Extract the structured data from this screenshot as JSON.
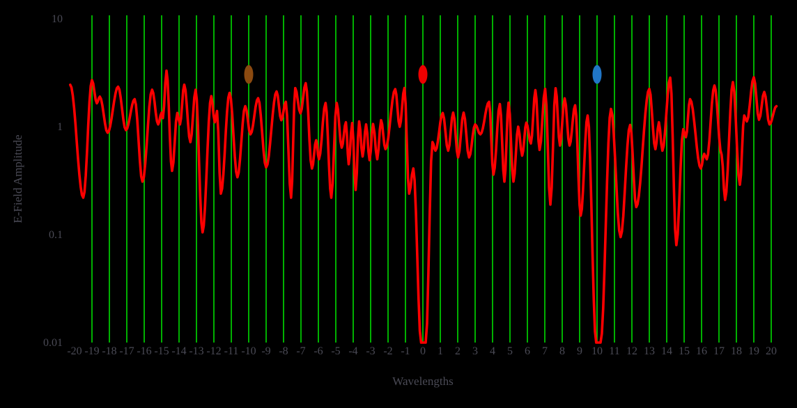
{
  "colors": {
    "background": "#000000",
    "curve": "#ff0000",
    "grid": "#00dd00",
    "text": "#4a4a55"
  },
  "chart_data": {
    "type": "line",
    "title": "",
    "xlabel": "Wavelengths",
    "ylabel": "E-Field Amplitude",
    "yscale": "log",
    "xlim": [
      -20.4,
      20.4
    ],
    "ylim": [
      0.01,
      10
    ],
    "x_ticks": [
      -20,
      -19,
      -18,
      -17,
      -16,
      -15,
      -14,
      -13,
      -12,
      -11,
      -10,
      -9,
      -8,
      -7,
      -6,
      -5,
      -4,
      -3,
      -2,
      -1,
      0,
      1,
      2,
      3,
      4,
      5,
      6,
      7,
      8,
      9,
      10,
      11,
      12,
      13,
      14,
      15,
      16,
      17,
      18,
      19,
      20
    ],
    "y_ticks": [
      {
        "value": 10,
        "label": "10"
      },
      {
        "value": 1,
        "label": "1"
      },
      {
        "value": 0.1,
        "label": "0.1"
      },
      {
        "value": 0.01,
        "label": "0.01"
      }
    ],
    "grid": {
      "vertical": true,
      "from": -19,
      "to": 20,
      "step": 1
    },
    "legend": "none",
    "series": [
      {
        "name": "e-field-amplitude",
        "color": "#ff0000",
        "interpolation": "cosine-log",
        "extrema": [
          [
            -20.25,
            2.45
          ],
          [
            -19.5,
            0.22
          ],
          [
            -19.0,
            2.7
          ],
          [
            -18.72,
            1.65
          ],
          [
            -18.55,
            1.9
          ],
          [
            -18.1,
            0.88
          ],
          [
            -17.5,
            2.35
          ],
          [
            -17.05,
            0.93
          ],
          [
            -16.55,
            1.8
          ],
          [
            -16.1,
            0.31
          ],
          [
            -15.55,
            2.2
          ],
          [
            -15.2,
            1.05
          ],
          [
            -15.0,
            1.35
          ],
          [
            -14.93,
            1.2
          ],
          [
            -14.72,
            3.3
          ],
          [
            -14.4,
            0.39
          ],
          [
            -14.1,
            1.34
          ],
          [
            -13.95,
            1.05
          ],
          [
            -13.7,
            2.45
          ],
          [
            -13.35,
            0.72
          ],
          [
            -13.05,
            2.2
          ],
          [
            -12.65,
            0.105
          ],
          [
            -12.15,
            1.92
          ],
          [
            -11.95,
            1.1
          ],
          [
            -11.82,
            1.4
          ],
          [
            -11.6,
            0.24
          ],
          [
            -11.1,
            2.06
          ],
          [
            -10.65,
            0.34
          ],
          [
            -10.2,
            1.55
          ],
          [
            -9.9,
            0.85
          ],
          [
            -9.46,
            1.84
          ],
          [
            -9.0,
            0.42
          ],
          [
            -8.4,
            2.12
          ],
          [
            -8.13,
            1.15
          ],
          [
            -7.87,
            1.7
          ],
          [
            -7.57,
            0.22
          ],
          [
            -7.33,
            2.28
          ],
          [
            -7.03,
            1.33
          ],
          [
            -6.73,
            2.53
          ],
          [
            -6.37,
            0.41
          ],
          [
            -6.13,
            0.75
          ],
          [
            -5.97,
            0.5
          ],
          [
            -5.59,
            1.66
          ],
          [
            -5.26,
            0.22
          ],
          [
            -4.95,
            1.66
          ],
          [
            -4.66,
            0.64
          ],
          [
            -4.42,
            1.1
          ],
          [
            -4.26,
            0.45
          ],
          [
            -4.06,
            1.08
          ],
          [
            -3.86,
            0.26
          ],
          [
            -3.66,
            1.12
          ],
          [
            -3.46,
            0.53
          ],
          [
            -3.26,
            1.05
          ],
          [
            -3.06,
            0.49
          ],
          [
            -2.86,
            1.06
          ],
          [
            -2.62,
            0.5
          ],
          [
            -2.4,
            1.15
          ],
          [
            -2.15,
            0.62
          ],
          [
            -1.59,
            2.23
          ],
          [
            -1.33,
            1.0
          ],
          [
            -1.06,
            2.28
          ],
          [
            -0.79,
            0.24
          ],
          [
            -0.55,
            0.41
          ],
          [
            -0.1,
            0.01
          ],
          [
            0.16,
            0.01
          ],
          [
            0.55,
            0.72
          ],
          [
            0.72,
            0.6
          ],
          [
            1.14,
            1.34
          ],
          [
            1.45,
            0.6
          ],
          [
            1.74,
            1.35
          ],
          [
            2.02,
            0.52
          ],
          [
            2.34,
            1.35
          ],
          [
            2.65,
            0.52
          ],
          [
            3.0,
            1.05
          ],
          [
            3.3,
            0.85
          ],
          [
            3.8,
            1.7
          ],
          [
            4.05,
            0.36
          ],
          [
            4.42,
            1.62
          ],
          [
            4.68,
            0.31
          ],
          [
            4.92,
            1.67
          ],
          [
            5.2,
            0.31
          ],
          [
            5.47,
            1.0
          ],
          [
            5.7,
            0.54
          ],
          [
            5.94,
            1.09
          ],
          [
            6.2,
            0.7
          ],
          [
            6.46,
            2.18
          ],
          [
            6.7,
            0.61
          ],
          [
            7.02,
            2.24
          ],
          [
            7.32,
            0.19
          ],
          [
            7.62,
            2.27
          ],
          [
            7.87,
            0.67
          ],
          [
            8.14,
            1.83
          ],
          [
            8.42,
            0.67
          ],
          [
            8.74,
            1.58
          ],
          [
            9.06,
            0.15
          ],
          [
            9.46,
            1.27
          ],
          [
            9.95,
            0.01
          ],
          [
            10.2,
            0.01
          ],
          [
            10.8,
            1.46
          ],
          [
            11.35,
            0.095
          ],
          [
            11.9,
            1.04
          ],
          [
            12.25,
            0.18
          ],
          [
            13.0,
            2.24
          ],
          [
            13.35,
            0.62
          ],
          [
            13.55,
            1.1
          ],
          [
            13.75,
            0.6
          ],
          [
            14.2,
            2.85
          ],
          [
            14.55,
            0.08
          ],
          [
            14.95,
            0.95
          ],
          [
            15.1,
            0.8
          ],
          [
            15.34,
            1.8
          ],
          [
            15.96,
            0.41
          ],
          [
            16.15,
            0.56
          ],
          [
            16.3,
            0.5
          ],
          [
            16.74,
            2.41
          ],
          [
            17.15,
            0.55
          ],
          [
            17.35,
            0.21
          ],
          [
            17.8,
            2.59
          ],
          [
            18.2,
            0.29
          ],
          [
            18.45,
            1.27
          ],
          [
            18.6,
            1.12
          ],
          [
            19.0,
            2.87
          ],
          [
            19.3,
            1.16
          ],
          [
            19.6,
            2.1
          ],
          [
            19.9,
            1.05
          ],
          [
            20.3,
            1.55
          ]
        ]
      }
    ],
    "markers": [
      {
        "name": "brown-marker",
        "x": -10,
        "y": 3.05,
        "color": "#8b4a10"
      },
      {
        "name": "red-marker",
        "x": 0,
        "y": 3.05,
        "color": "#ee0000"
      },
      {
        "name": "blue-marker",
        "x": 10,
        "y": 3.05,
        "color": "#2176c7"
      }
    ]
  }
}
